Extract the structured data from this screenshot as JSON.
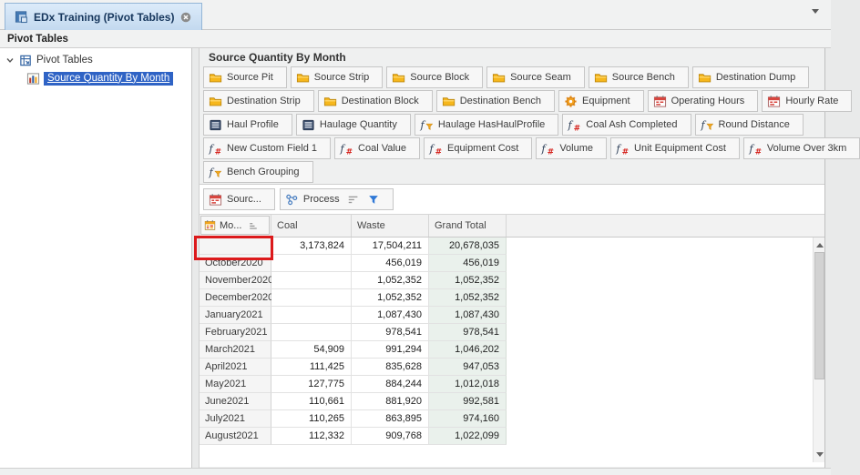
{
  "window": {
    "tab": {
      "title": "EDx Training (Pivot Tables)",
      "icon": "pivot-table-icon",
      "close_icon": "close-icon"
    },
    "panel_title": "Pivot Tables"
  },
  "sidebar": {
    "root_label": "Pivot Tables",
    "root_icon": "pivot-table-icon",
    "selected_item": {
      "label": "Source Quantity By Month",
      "icon": "bar-chart-icon"
    }
  },
  "main": {
    "title": "Source Quantity By Month",
    "field_rows": [
      [
        {
          "label": "Source Pit",
          "icon": "folder-icon"
        },
        {
          "label": "Source Strip",
          "icon": "folder-icon"
        },
        {
          "label": "Source Block",
          "icon": "folder-icon"
        },
        {
          "label": "Source Seam",
          "icon": "folder-icon"
        },
        {
          "label": "Source Bench",
          "icon": "folder-icon"
        },
        {
          "label": "Destination Dump",
          "icon": "folder-icon"
        }
      ],
      [
        {
          "label": "Destination Strip",
          "icon": "folder-icon"
        },
        {
          "label": "Destination Block",
          "icon": "folder-icon"
        },
        {
          "label": "Destination Bench",
          "icon": "folder-icon"
        },
        {
          "label": "Equipment",
          "icon": "gear-icon"
        },
        {
          "label": "Operating Hours",
          "icon": "calendar-red-icon"
        },
        {
          "label": "Hourly Rate",
          "icon": "calendar-red-icon"
        }
      ],
      [
        {
          "label": "Haul Profile",
          "icon": "data-table-icon"
        },
        {
          "label": "Haulage Quantity",
          "icon": "data-table-icon"
        },
        {
          "label": "Haulage HasHaulProfile",
          "icon": "function-filter-icon"
        },
        {
          "label": "Coal Ash Completed",
          "icon": "function-number-icon"
        },
        {
          "label": "Round Distance",
          "icon": "function-filter-icon"
        }
      ],
      [
        {
          "label": "New Custom Field 1",
          "icon": "function-number-icon"
        },
        {
          "label": "Coal Value",
          "icon": "function-number-icon"
        },
        {
          "label": "Equipment Cost",
          "icon": "function-number-icon"
        },
        {
          "label": "Volume",
          "icon": "function-number-icon"
        },
        {
          "label": "Unit Equipment Cost",
          "icon": "function-number-icon"
        },
        {
          "label": "Volume Over 3km",
          "icon": "function-number-icon"
        }
      ],
      [
        {
          "label": "Bench Grouping",
          "icon": "function-filter-icon"
        }
      ]
    ],
    "filter_area": {
      "source_chip": {
        "label": "Sourc...",
        "icon": "calendar-red-icon"
      },
      "process_chip": {
        "label": "Process",
        "icon": "process-icon",
        "sort_icon": "sort-desc-icon",
        "filter_icon": "filter-funnel-icon"
      }
    },
    "grid": {
      "row_field_chip": {
        "label": "Mo...",
        "icon": "calendar-yellow-icon",
        "sort_icon": "sort-asc-icon"
      },
      "columns": [
        "Coal",
        "Waste",
        "Grand Total"
      ],
      "rows": [
        {
          "month": "",
          "coal": "3,173,824",
          "waste": "17,504,211",
          "total": "20,678,035"
        },
        {
          "month": "October2020",
          "coal": "",
          "waste": "456,019",
          "total": "456,019"
        },
        {
          "month": "November2020",
          "coal": "",
          "waste": "1,052,352",
          "total": "1,052,352"
        },
        {
          "month": "December2020",
          "coal": "",
          "waste": "1,052,352",
          "total": "1,052,352"
        },
        {
          "month": "January2021",
          "coal": "",
          "waste": "1,087,430",
          "total": "1,087,430"
        },
        {
          "month": "February2021",
          "coal": "",
          "waste": "978,541",
          "total": "978,541"
        },
        {
          "month": "March2021",
          "coal": "54,909",
          "waste": "991,294",
          "total": "1,046,202"
        },
        {
          "month": "April2021",
          "coal": "111,425",
          "waste": "835,628",
          "total": "947,053"
        },
        {
          "month": "May2021",
          "coal": "127,775",
          "waste": "884,244",
          "total": "1,012,018"
        },
        {
          "month": "June2021",
          "coal": "110,661",
          "waste": "881,920",
          "total": "992,581"
        },
        {
          "month": "July2021",
          "coal": "110,265",
          "waste": "863,895",
          "total": "974,160"
        },
        {
          "month": "August2021",
          "coal": "112,332",
          "waste": "909,768",
          "total": "1,022,099"
        }
      ],
      "annotation": {
        "type": "red-rectangle",
        "target": "first-row-month-cell",
        "color": "#dc1a1c"
      }
    }
  },
  "colors": {
    "selection_blue": "#2f63c5",
    "tab_blue": "#c3d9ef",
    "grand_total_green": "#eaf1ec",
    "annotation_red": "#dc1a1c"
  }
}
